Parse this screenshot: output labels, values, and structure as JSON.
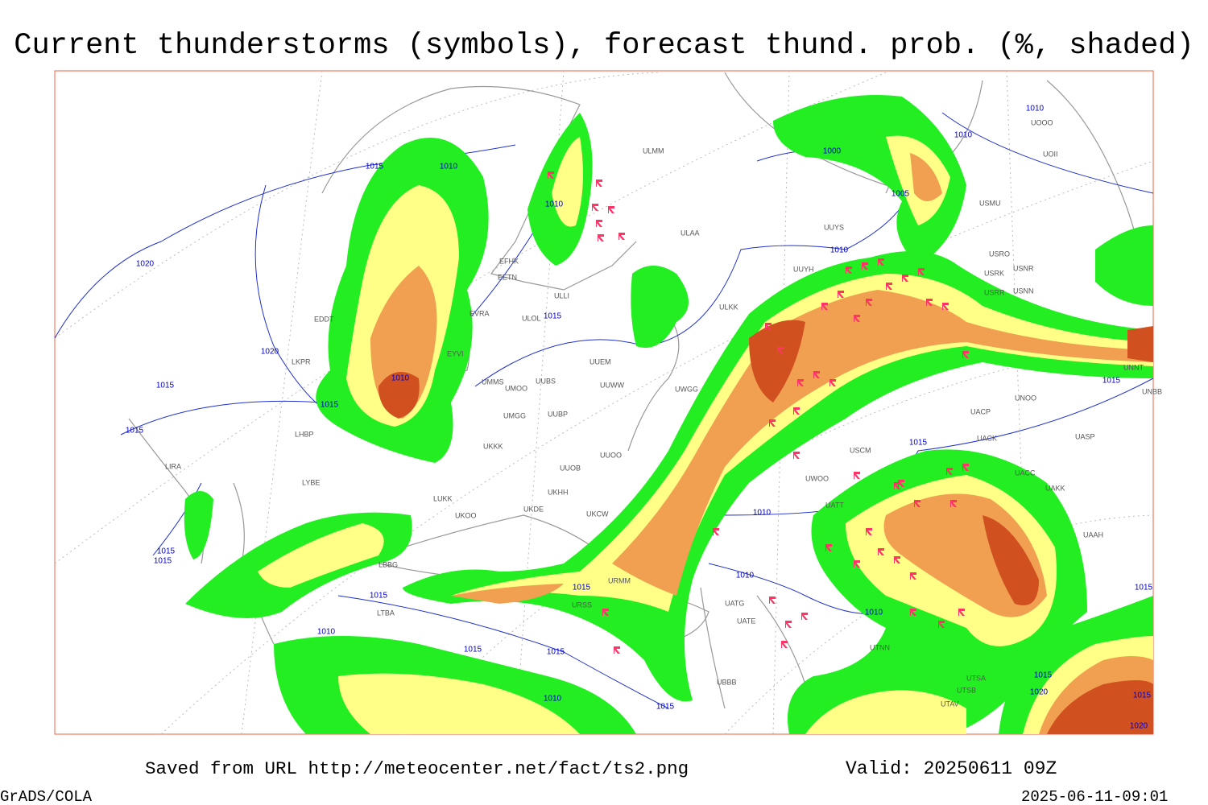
{
  "title": "Current thunderstorms (symbols), forecast thund. prob. (%, shaded)",
  "footer": {
    "saved": "Saved from URL http://meteocenter.net/fact/ts2.png",
    "valid": "Valid: 20250611 09Z",
    "software": "GrADS/COLA",
    "timestamp": "2025-06-11-09:01"
  },
  "isobars": [
    1015,
    1010,
    1010,
    1020,
    1020,
    1010,
    1015,
    1015,
    1015,
    1015,
    1015,
    1015,
    1015,
    1010,
    1015,
    1015,
    1015,
    1010,
    1015,
    1010,
    1010,
    1010,
    1015,
    1015,
    1010,
    1005,
    1000,
    1010,
    1010,
    1015,
    1015,
    1020,
    1015,
    1020
  ],
  "stations": [
    "EFHK",
    "EETN",
    "EVRA",
    "EYVI",
    "EDDT",
    "LKPR",
    "LHBP",
    "LIRA",
    "LYBE",
    "ULLI",
    "ULOL",
    "UUEM",
    "UMMS",
    "UMOO",
    "UUBS",
    "UUWW",
    "UMGG",
    "UUBP",
    "UKKK",
    "UUOO",
    "UUOB",
    "LUKK",
    "UKHH",
    "UKDE",
    "UKOO",
    "UKCW",
    "ULAA",
    "ULMM",
    "ULKK",
    "UWGG",
    "UUYS",
    "UUYH",
    "USRO",
    "USRK",
    "USNR",
    "USRR",
    "USNN",
    "USMU",
    "UOOO",
    "UOII",
    "UNNT",
    "UNBB",
    "UNOO",
    "UACP",
    "UACK",
    "UASP",
    "UACC",
    "UAKK",
    "UAAH",
    "USCM",
    "UWOO",
    "UATT",
    "UATG",
    "UATE",
    "UTNN",
    "UTSA",
    "UTSB",
    "UTAV",
    "UBBB",
    "LTBA",
    "LBBG",
    "URMM",
    "URSS"
  ]
}
